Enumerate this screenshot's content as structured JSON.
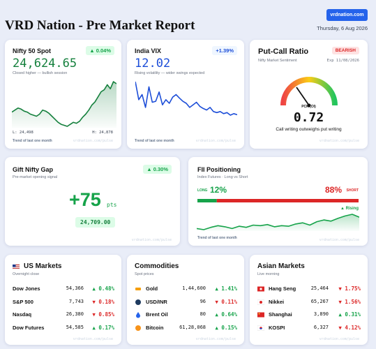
{
  "header": {
    "title": "VRD Nation - Pre Market Report",
    "link": "vrdnation.com",
    "date": "Thursday, 6 Aug 2026"
  },
  "watermark": "vrdnation.com/pulse",
  "cards": {
    "nifty": {
      "title": "Nifty 50 Spot",
      "change": "▲ 0.04%",
      "value": "24,624.65",
      "note": "Closed higher — bullish session",
      "low": "L: 24,498",
      "high": "H: 24,878",
      "footer": "Trend of last one month",
      "trend": [
        40,
        42,
        44,
        43,
        41,
        40,
        38,
        37,
        36,
        38,
        42,
        41,
        39,
        36,
        33,
        30,
        28,
        27,
        26,
        28,
        30,
        29,
        31,
        35,
        38,
        42,
        47,
        50,
        55,
        60,
        62,
        67,
        63,
        70,
        68
      ]
    },
    "vix": {
      "title": "India VIX",
      "change": "+1.39%",
      "value": "12.02",
      "note": "Rising volatility — wider swings expected",
      "footer": "Trend of last one month",
      "trend": [
        80,
        45,
        55,
        30,
        70,
        40,
        42,
        60,
        35,
        45,
        38,
        50,
        55,
        48,
        42,
        38,
        30,
        35,
        40,
        32,
        28,
        25,
        30,
        22,
        20,
        22,
        18,
        20,
        15,
        18,
        16
      ]
    },
    "pcr": {
      "title": "Put-Call Ratio",
      "badge": "BEARISH",
      "subtitle": "Nifty Market Sentiment",
      "expiry": "Exp 11/08/2026",
      "gauge_label": "PCR (OI)",
      "value": "0.72",
      "note": "Call writing outweighs put writing"
    },
    "gift": {
      "title": "Gift Nifty Gap",
      "change": "▲ 0.30%",
      "subtitle": "Pre-market opening signal",
      "gap": "+75",
      "unit": "pts",
      "level": "24,709.00"
    },
    "fii": {
      "title": "FII Positioning",
      "subtitle": "Index Futures · Long vs Short",
      "split": {
        "names": [
          "LONG",
          "SHORT"
        ],
        "values": [
          12,
          88
        ],
        "value_labels": [
          "12%",
          "88%"
        ],
        "colors": [
          "#16a34a",
          "#dc2626"
        ]
      },
      "trend_label": "▲ Rising",
      "footer": "Trend of last one month",
      "trend": [
        20,
        18,
        22,
        25,
        23,
        20,
        24,
        22,
        26,
        25,
        27,
        23,
        25,
        24,
        28,
        30,
        26,
        32,
        35,
        33,
        38,
        42,
        45,
        40
      ]
    }
  },
  "tables": [
    {
      "title": "US Markets",
      "subtitle": "Overnight close",
      "rows": [
        [
          "Dow Jones",
          "54,366",
          "▲ 0.48%"
        ],
        [
          "S&P 500",
          "7,743",
          "▼ 0.18%"
        ],
        [
          "Nasdaq",
          "26,380",
          "▼ 0.85%"
        ],
        [
          "Dow Futures",
          "54,585",
          "▲ 0.17%"
        ]
      ]
    },
    {
      "title": "Commodities",
      "subtitle": "Spot prices",
      "rows": [
        [
          "Gold",
          "1,44,600",
          "▲ 1.41%"
        ],
        [
          "USD/INR",
          "96",
          "▼ 0.11%"
        ],
        [
          "Brent Oil",
          "80",
          "▲ 0.64%"
        ],
        [
          "Bitcoin",
          "61,28,068",
          "▲ 0.15%"
        ]
      ]
    },
    {
      "title": "Asian Markets",
      "subtitle": "Live morning",
      "rows": [
        [
          "Hang Seng",
          "25,464",
          "▼ 1.75%"
        ],
        [
          "Nikkei",
          "65,267",
          "▼ 1.56%"
        ],
        [
          "Shanghai",
          "3,890",
          "▲ 0.31%"
        ],
        [
          "KOSPI",
          "6,327",
          "▼ 4.12%"
        ]
      ]
    }
  ]
}
